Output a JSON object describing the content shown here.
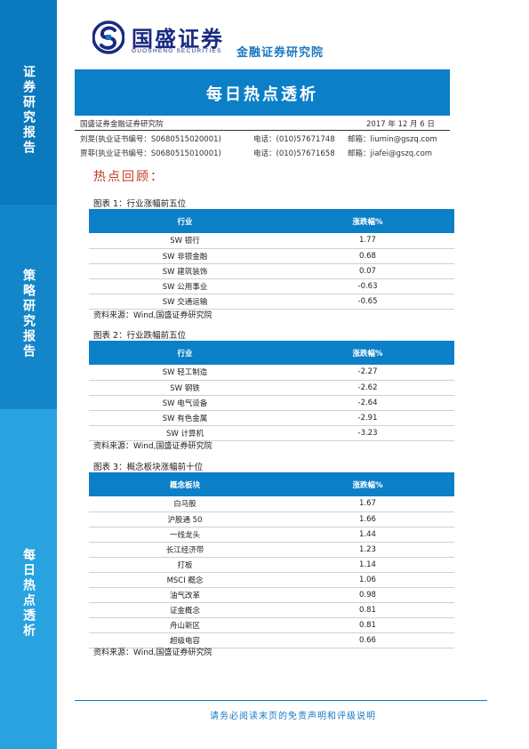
{
  "sidebar": {
    "section1": "证券研究报告",
    "section2": "策略研究报告",
    "section3": "每日热点透析"
  },
  "header": {
    "logo_cn": "国盛证券",
    "logo_en": "GUOSHENG SECURITIES",
    "subtitle": "金融证券研究院"
  },
  "title": "每日热点透析",
  "info": {
    "institute": "国盛证券金融证券研究院",
    "date": "2017 年 12 月 6 日",
    "analysts": [
      {
        "name_cert": "刘旻(执业证书编号：S0680515020001)",
        "phone": "电话：(010)57671748",
        "email": "邮箱：liumin@gszq.com"
      },
      {
        "name_cert": "贾菲(执业证书编号：S0680515010001)",
        "phone": "电话：(010)57671658",
        "email": "邮箱：jiafei@gszq.com"
      }
    ]
  },
  "section_heading": "热点回顾：",
  "tables": [
    {
      "title": "图表 1：行业涨幅前五位",
      "headers": [
        "行业",
        "涨跌幅%"
      ],
      "rows": [
        [
          "SW 银行",
          "1.77"
        ],
        [
          "SW 非银金融",
          "0.68"
        ],
        [
          "SW 建筑装饰",
          "0.07"
        ],
        [
          "SW 公用事业",
          "-0.63"
        ],
        [
          "SW 交通运输",
          "-0.65"
        ]
      ],
      "source": "资料来源：Wind,国盛证券研究院"
    },
    {
      "title": "图表 2：行业跌幅前五位",
      "headers": [
        "行业",
        "涨跌幅%"
      ],
      "rows": [
        [
          "SW 轻工制造",
          "-2.27"
        ],
        [
          "SW 钢铁",
          "-2.62"
        ],
        [
          "SW 电气设备",
          "-2.64"
        ],
        [
          "SW 有色金属",
          "-2.91"
        ],
        [
          "SW 计算机",
          "-3.23"
        ]
      ],
      "source": "资料来源：Wind,国盛证券研究院"
    },
    {
      "title": "图表 3：概念板块涨幅前十位",
      "headers": [
        "概念板块",
        "涨跌幅%"
      ],
      "rows": [
        [
          "白马股",
          "1.67"
        ],
        [
          "沪股通 50",
          "1.66"
        ],
        [
          "一线龙头",
          "1.44"
        ],
        [
          "长江经济带",
          "1.23"
        ],
        [
          "打板",
          "1.14"
        ],
        [
          "MSCI 概念",
          "1.06"
        ],
        [
          "油气改革",
          "0.98"
        ],
        [
          "证金概念",
          "0.81"
        ],
        [
          "舟山新区",
          "0.81"
        ],
        [
          "超级电容",
          "0.66"
        ]
      ],
      "source": "资料来源：Wind,国盛证券研究院"
    }
  ],
  "footer": "请务必阅读末页的免责声明和评级说明",
  "colors": {
    "brand_blue": "#0b7fc8",
    "sidebar_dark": "#0b79be",
    "sidebar_light": "#28a3e0",
    "heading_red": "#c0392b",
    "logo_navy": "#1a2a80"
  }
}
